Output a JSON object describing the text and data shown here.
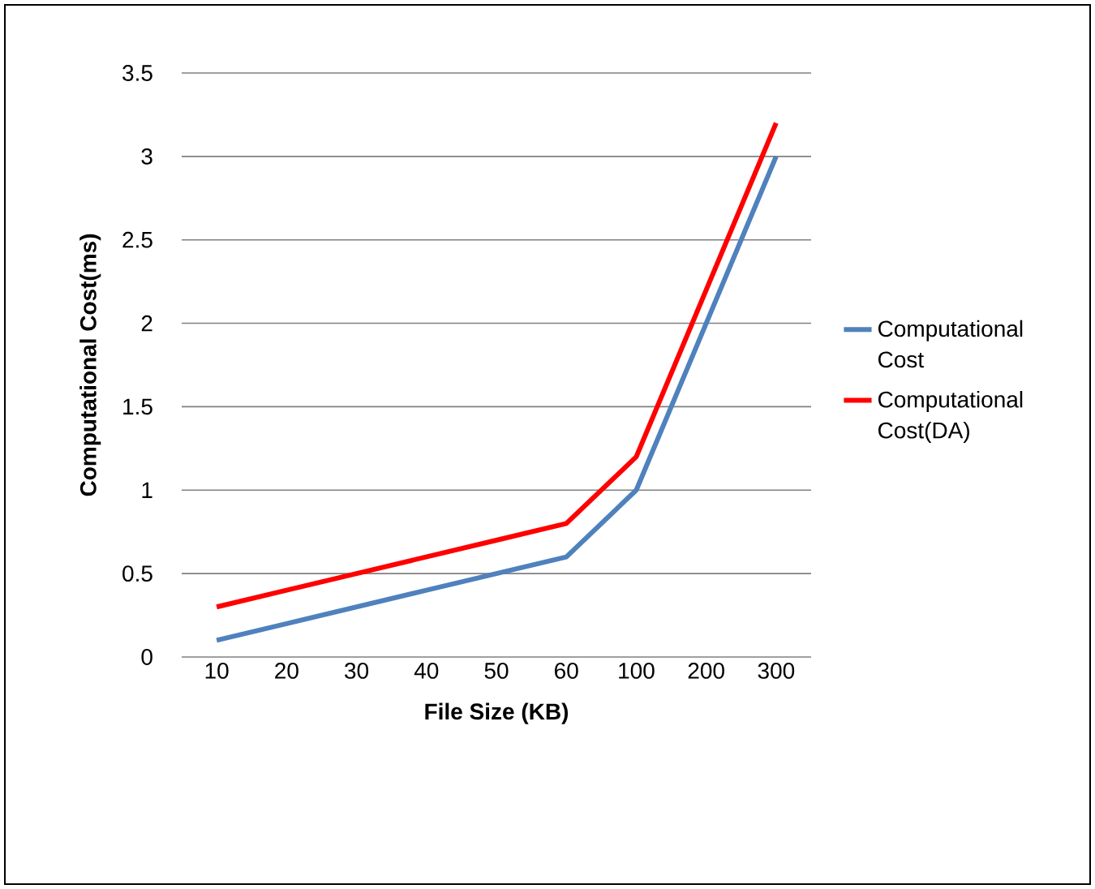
{
  "chart_data": {
    "type": "line",
    "xlabel": "File  Size  (KB)",
    "ylabel": "Computational  Cost(ms)",
    "categories": [
      "10",
      "20",
      "30",
      "40",
      "50",
      "60",
      "100",
      "200",
      "300"
    ],
    "series": [
      {
        "name": "Computational Cost",
        "color": "#4f81bd",
        "values": [
          0.1,
          0.2,
          0.3,
          0.4,
          0.5,
          0.6,
          1.0,
          2.0,
          3.0
        ]
      },
      {
        "name": "Computational Cost(DA)",
        "color": "#ff0000",
        "values": [
          0.3,
          0.4,
          0.5,
          0.6,
          0.7,
          0.8,
          1.2,
          2.2,
          3.2
        ]
      }
    ],
    "ylim": [
      0,
      3.5
    ],
    "yticks": [
      0,
      0.5,
      1,
      1.5,
      2,
      2.5,
      3,
      3.5
    ],
    "grid": "y",
    "legend": "right",
    "marker": "none",
    "line_style": "solid"
  }
}
